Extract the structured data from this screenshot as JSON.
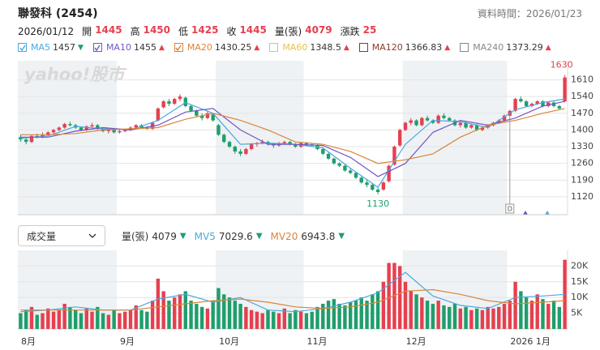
{
  "header": {
    "title": "聯發科 (2454)",
    "data_time": "資料時間：2026/01/23",
    "date": "2026/01/12",
    "quote": [
      {
        "label": "開",
        "value": 1445
      },
      {
        "label": "高",
        "value": 1450
      },
      {
        "label": "低",
        "value": 1425
      },
      {
        "label": "收",
        "value": 1445
      },
      {
        "label": "量(張)",
        "value": 4079
      },
      {
        "label": "漲跌",
        "value": 25
      }
    ]
  },
  "ma_legend": [
    {
      "name": "MA5",
      "value": 1457,
      "arrow": "▼",
      "color": "#4aa8e0",
      "checked": true
    },
    {
      "name": "MA10",
      "value": 1455,
      "arrow": "▲",
      "color": "#7357c8",
      "checked": true
    },
    {
      "name": "MA20",
      "value": 1430.25,
      "arrow": "▲",
      "color": "#d9853b",
      "checked": true
    },
    {
      "name": "MA60",
      "value": 1348.5,
      "arrow": "▲",
      "color": "#e8c24a",
      "checked": false
    },
    {
      "name": "MA120",
      "value": 1366.83,
      "arrow": "▲",
      "color": "#8a3b2a",
      "checked": false
    },
    {
      "name": "MA240",
      "value": 1373.29,
      "arrow": "▲",
      "color": "#888888",
      "checked": false
    }
  ],
  "volume_controls": {
    "select": "成交量",
    "items": [
      {
        "name": "量(張)",
        "value": 4079,
        "arrow": "▼",
        "color": "#333333"
      },
      {
        "name": "MV5",
        "value": 7029.6,
        "arrow": "▼",
        "color": "#4aa8e0"
      },
      {
        "name": "MV20",
        "value": 6943.8,
        "arrow": "▼",
        "color": "#d9853b"
      }
    ]
  },
  "chart_data": [
    {
      "type": "candlestick",
      "watermark": "yahoo!股市",
      "categories": [
        "8月",
        null,
        null,
        null,
        null,
        null,
        null,
        null,
        null,
        null,
        null,
        null,
        null,
        null,
        null,
        null,
        null,
        null,
        "9月",
        null,
        null,
        null,
        null,
        null,
        null,
        null,
        null,
        null,
        null,
        null,
        null,
        null,
        null,
        null,
        null,
        null,
        "10月",
        null,
        null,
        null,
        null,
        null,
        null,
        null,
        null,
        null,
        null,
        null,
        null,
        null,
        null,
        null,
        "11月",
        null,
        null,
        null,
        null,
        null,
        null,
        null,
        null,
        null,
        null,
        null,
        null,
        null,
        null,
        null,
        null,
        null,
        "12月",
        null,
        null,
        null,
        null,
        null,
        null,
        null,
        null,
        null,
        null,
        null,
        null,
        null,
        null,
        null,
        null,
        null,
        null,
        "2026 1月",
        null,
        null,
        null,
        null,
        null,
        null,
        null,
        null,
        null,
        null
      ],
      "ohlc": [
        [
          1370,
          1380,
          1350,
          1360
        ],
        [
          1360,
          1365,
          1340,
          1350
        ],
        [
          1350,
          1380,
          1345,
          1375
        ],
        [
          1375,
          1385,
          1365,
          1370
        ],
        [
          1370,
          1390,
          1365,
          1380
        ],
        [
          1380,
          1395,
          1375,
          1390
        ],
        [
          1390,
          1405,
          1385,
          1400
        ],
        [
          1400,
          1415,
          1395,
          1410
        ],
        [
          1410,
          1430,
          1405,
          1425
        ],
        [
          1425,
          1435,
          1415,
          1420
        ],
        [
          1420,
          1425,
          1405,
          1410
        ],
        [
          1410,
          1415,
          1395,
          1400
        ],
        [
          1400,
          1420,
          1395,
          1415
        ],
        [
          1415,
          1430,
          1410,
          1420
        ],
        [
          1420,
          1425,
          1400,
          1405
        ],
        [
          1405,
          1410,
          1390,
          1395
        ],
        [
          1395,
          1405,
          1385,
          1400
        ],
        [
          1400,
          1405,
          1385,
          1390
        ],
        [
          1390,
          1400,
          1385,
          1395
        ],
        [
          1395,
          1405,
          1390,
          1400
        ],
        [
          1400,
          1415,
          1395,
          1410
        ],
        [
          1410,
          1425,
          1405,
          1420
        ],
        [
          1420,
          1425,
          1405,
          1410
        ],
        [
          1410,
          1415,
          1400,
          1405
        ],
        [
          1405,
          1435,
          1400,
          1430
        ],
        [
          1440,
          1495,
          1435,
          1490
        ],
        [
          1495,
          1525,
          1490,
          1520
        ],
        [
          1520,
          1530,
          1500,
          1510
        ],
        [
          1510,
          1535,
          1505,
          1530
        ],
        [
          1530,
          1550,
          1520,
          1540
        ],
        [
          1535,
          1540,
          1495,
          1500
        ],
        [
          1500,
          1505,
          1475,
          1480
        ],
        [
          1480,
          1485,
          1455,
          1460
        ],
        [
          1460,
          1470,
          1440,
          1450
        ],
        [
          1450,
          1480,
          1445,
          1470
        ],
        [
          1465,
          1470,
          1435,
          1440
        ],
        [
          1420,
          1425,
          1375,
          1380
        ],
        [
          1380,
          1385,
          1345,
          1350
        ],
        [
          1350,
          1355,
          1325,
          1330
        ],
        [
          1330,
          1335,
          1300,
          1310
        ],
        [
          1310,
          1320,
          1290,
          1300
        ],
        [
          1300,
          1325,
          1295,
          1320
        ],
        [
          1320,
          1345,
          1315,
          1340
        ],
        [
          1340,
          1350,
          1330,
          1345
        ],
        [
          1345,
          1360,
          1340,
          1350
        ],
        [
          1350,
          1355,
          1335,
          1340
        ],
        [
          1340,
          1345,
          1325,
          1335
        ],
        [
          1335,
          1350,
          1330,
          1345
        ],
        [
          1345,
          1355,
          1340,
          1350
        ],
        [
          1350,
          1355,
          1335,
          1340
        ],
        [
          1340,
          1345,
          1325,
          1330
        ],
        [
          1330,
          1350,
          1325,
          1345
        ],
        [
          1345,
          1350,
          1335,
          1340
        ],
        [
          1340,
          1345,
          1330,
          1335
        ],
        [
          1335,
          1340,
          1315,
          1320
        ],
        [
          1320,
          1325,
          1295,
          1300
        ],
        [
          1300,
          1305,
          1275,
          1280
        ],
        [
          1280,
          1285,
          1255,
          1260
        ],
        [
          1260,
          1265,
          1245,
          1250
        ],
        [
          1250,
          1255,
          1225,
          1230
        ],
        [
          1230,
          1240,
          1215,
          1220
        ],
        [
          1220,
          1225,
          1195,
          1200
        ],
        [
          1200,
          1205,
          1175,
          1180
        ],
        [
          1180,
          1190,
          1160,
          1170
        ],
        [
          1170,
          1175,
          1145,
          1150
        ],
        [
          1150,
          1160,
          1130,
          1140
        ],
        [
          1150,
          1185,
          1145,
          1180
        ],
        [
          1185,
          1255,
          1180,
          1250
        ],
        [
          1255,
          1335,
          1250,
          1330
        ],
        [
          1335,
          1405,
          1330,
          1400
        ],
        [
          1400,
          1435,
          1395,
          1430
        ],
        [
          1430,
          1450,
          1420,
          1440
        ],
        [
          1440,
          1445,
          1415,
          1420
        ],
        [
          1420,
          1455,
          1415,
          1450
        ],
        [
          1450,
          1460,
          1435,
          1440
        ],
        [
          1440,
          1445,
          1425,
          1430
        ],
        [
          1430,
          1465,
          1425,
          1460
        ],
        [
          1460,
          1470,
          1445,
          1450
        ],
        [
          1450,
          1455,
          1435,
          1440
        ],
        [
          1440,
          1445,
          1415,
          1420
        ],
        [
          1420,
          1435,
          1410,
          1430
        ],
        [
          1430,
          1435,
          1405,
          1410
        ],
        [
          1410,
          1425,
          1405,
          1420
        ],
        [
          1420,
          1425,
          1395,
          1400
        ],
        [
          1400,
          1415,
          1395,
          1410
        ],
        [
          1410,
          1425,
          1405,
          1420
        ],
        [
          1420,
          1435,
          1415,
          1430
        ],
        [
          1430,
          1445,
          1425,
          1440
        ],
        [
          1440,
          1465,
          1435,
          1460
        ],
        [
          1460,
          1485,
          1455,
          1480
        ],
        [
          1480,
          1535,
          1475,
          1530
        ],
        [
          1530,
          1540,
          1515,
          1520
        ],
        [
          1520,
          1525,
          1495,
          1500
        ],
        [
          1500,
          1515,
          1495,
          1510
        ],
        [
          1510,
          1525,
          1505,
          1520
        ],
        [
          1520,
          1525,
          1495,
          1500
        ],
        [
          1500,
          1520,
          1495,
          1515
        ],
        [
          1515,
          1520,
          1495,
          1500
        ],
        [
          1500,
          1505,
          1485,
          1490
        ],
        [
          1520,
          1630,
          1515,
          1620
        ]
      ],
      "up_color": "#e5404f",
      "down_color": "#1f9e6b",
      "ylim": [
        1045,
        1690
      ],
      "yticks": [
        1120,
        1190,
        1260,
        1330,
        1400,
        1470,
        1540,
        1610
      ],
      "grid": true,
      "series": [
        {
          "name": "MA5",
          "color": "#4aa8e0",
          "x": [
            0,
            5,
            10,
            15,
            20,
            25,
            30,
            35,
            40,
            45,
            50,
            55,
            60,
            65,
            70,
            75,
            80,
            85,
            90,
            95,
            99
          ],
          "values": [
            1365,
            1375,
            1415,
            1405,
            1400,
            1440,
            1515,
            1470,
            1340,
            1345,
            1340,
            1325,
            1240,
            1160,
            1340,
            1440,
            1435,
            1410,
            1485,
            1515,
            1530
          ]
        },
        {
          "name": "MA10",
          "color": "#7357c8",
          "x": [
            0,
            5,
            10,
            15,
            20,
            25,
            30,
            35,
            40,
            45,
            50,
            55,
            60,
            65,
            70,
            75,
            80,
            85,
            90,
            95,
            99
          ],
          "values": [
            1370,
            1370,
            1395,
            1410,
            1400,
            1420,
            1475,
            1490,
            1400,
            1340,
            1340,
            1335,
            1285,
            1205,
            1260,
            1390,
            1440,
            1420,
            1450,
            1500,
            1520
          ]
        },
        {
          "name": "MA20",
          "color": "#d9853b",
          "x": [
            0,
            5,
            10,
            15,
            20,
            25,
            30,
            35,
            40,
            45,
            50,
            55,
            60,
            65,
            70,
            75,
            80,
            85,
            90,
            95,
            99
          ],
          "values": [
            1380,
            1380,
            1385,
            1400,
            1405,
            1410,
            1445,
            1470,
            1440,
            1400,
            1350,
            1340,
            1310,
            1260,
            1275,
            1300,
            1370,
            1420,
            1440,
            1470,
            1490
          ]
        }
      ],
      "annotations": [
        {
          "value": 1630,
          "index": 99,
          "color": "#e5404f"
        },
        {
          "value": 1130,
          "index": 65,
          "color": "#1f9e6b"
        }
      ],
      "marker": {
        "text": "D",
        "index": 89
      }
    },
    {
      "type": "bar",
      "values": [
        5000,
        6000,
        7000,
        4500,
        5000,
        6500,
        5500,
        6000,
        8000,
        7000,
        6000,
        5000,
        6500,
        5500,
        7000,
        5000,
        4500,
        6000,
        5000,
        5500,
        6000,
        7500,
        6000,
        5500,
        9000,
        16000,
        12000,
        9000,
        10000,
        11000,
        12000,
        9000,
        8000,
        7000,
        6500,
        9000,
        13000,
        11000,
        10000,
        9000,
        8000,
        7000,
        6000,
        5500,
        5000,
        6000,
        5500,
        5000,
        6500,
        5000,
        6000,
        5500,
        5000,
        5500,
        7000,
        8000,
        9000,
        9500,
        8000,
        7500,
        8500,
        9000,
        10000,
        9000,
        11000,
        12000,
        15000,
        21000,
        21000,
        20000,
        15000,
        12000,
        11000,
        10000,
        9000,
        8000,
        9000,
        7500,
        7000,
        8000,
        6500,
        7000,
        6000,
        6500,
        6000,
        7000,
        6500,
        7000,
        8000,
        9000,
        15000,
        12000,
        10000,
        9000,
        11000,
        9500,
        8000,
        9000,
        7000,
        22000
      ],
      "ylim": [
        0,
        25000
      ],
      "yticks": [
        {
          "value": 5000,
          "label": "5K"
        },
        {
          "value": 10000,
          "label": "10K"
        },
        {
          "value": 15000,
          "label": "15K"
        },
        {
          "value": 20000,
          "label": "20K"
        }
      ],
      "series": [
        {
          "name": "MV5",
          "color": "#4aa8e0",
          "x": [
            0,
            5,
            10,
            15,
            20,
            25,
            30,
            35,
            40,
            45,
            50,
            55,
            60,
            65,
            70,
            75,
            80,
            85,
            90,
            95,
            99
          ],
          "values": [
            5500,
            6000,
            7000,
            6000,
            6000,
            9500,
            11000,
            8500,
            10000,
            6000,
            5500,
            6500,
            8500,
            11500,
            18000,
            10500,
            7500,
            6500,
            10000,
            10500,
            11000
          ]
        },
        {
          "name": "MV20",
          "color": "#d9853b",
          "x": [
            0,
            5,
            10,
            15,
            20,
            25,
            30,
            35,
            40,
            45,
            50,
            55,
            60,
            65,
            70,
            75,
            80,
            85,
            90,
            95,
            99
          ],
          "values": [
            6000,
            6000,
            6000,
            6000,
            6000,
            7000,
            8000,
            9000,
            9500,
            8500,
            7000,
            6500,
            7000,
            8500,
            12000,
            12500,
            11000,
            9000,
            8000,
            8500,
            9000
          ]
        }
      ]
    }
  ]
}
